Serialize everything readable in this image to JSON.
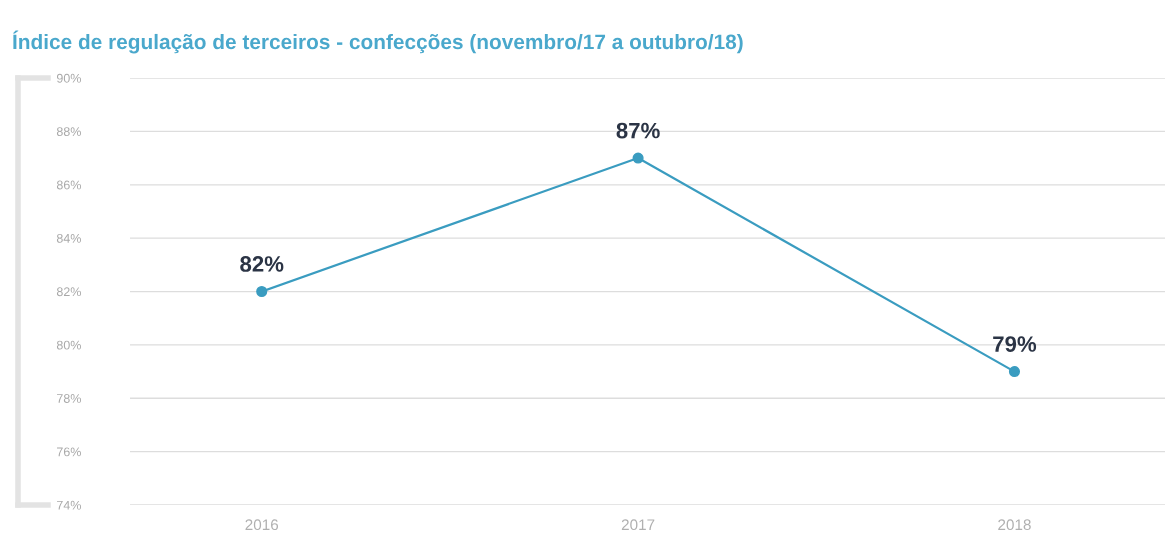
{
  "chart_data": {
    "type": "line",
    "title": "Índice de regulação de terceiros - confecções (novembro/17 a outubro/18)",
    "categories": [
      "2016",
      "2017",
      "2018"
    ],
    "series": [
      {
        "color": "#3a9cc0",
        "values": [
          82,
          87,
          79
        ],
        "value_labels": [
          "82%",
          "87%",
          "79%"
        ]
      }
    ],
    "ylim": [
      74,
      90
    ],
    "yticks": [
      {
        "value": 74,
        "label": "74%"
      },
      {
        "value": 76,
        "label": "76%"
      },
      {
        "value": 78,
        "label": "78%"
      },
      {
        "value": 80,
        "label": "80%"
      },
      {
        "value": 82,
        "label": "82%"
      },
      {
        "value": 84,
        "label": "84%"
      },
      {
        "value": 86,
        "label": "86%"
      },
      {
        "value": 88,
        "label": "88%"
      },
      {
        "value": 90,
        "label": "90%"
      }
    ],
    "grid": "y",
    "marker": "circle",
    "line_style": "solid",
    "legend": false
  }
}
